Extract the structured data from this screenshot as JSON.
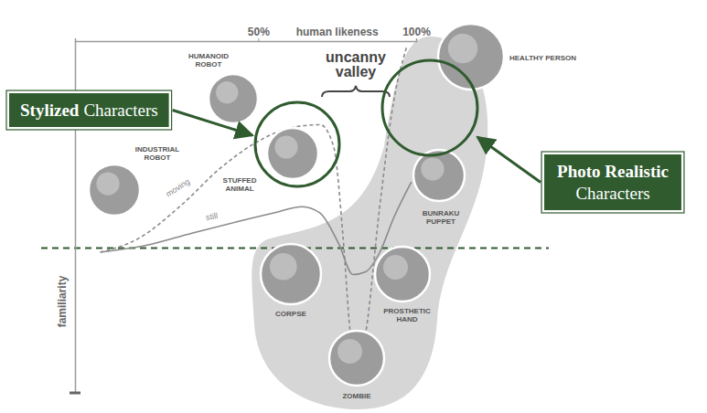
{
  "chart_data": {
    "type": "line",
    "x_label": "human likeness",
    "y_label": "familiarity",
    "xlim": [
      -8,
      100
    ],
    "xticks": [
      {
        "value": 50,
        "label": "50%"
      },
      {
        "value": 100,
        "label": "100%"
      }
    ],
    "ylim": [
      -70,
      100
    ],
    "yticks": [
      0
    ],
    "grid": true,
    "tick_labels": "x",
    "series": [
      {
        "name": "still",
        "color": "#8a8a8a",
        "line_style": "solid",
        "x": [
          0,
          14.5,
          29,
          43.5,
          55,
          64,
          69.5,
          75.5,
          80,
          84,
          88.5,
          93,
          98.5
        ],
        "values": [
          -2,
          1.3,
          7.2,
          12.8,
          17,
          20,
          17,
          2,
          -12.8,
          -11.5,
          -2,
          15,
          32
        ]
      },
      {
        "name": "moving",
        "color": "#8a8a8a",
        "line_style": "dashed",
        "x": [
          0,
          11.6,
          26,
          37.7,
          49.3,
          60.9,
          69.6,
          73.9,
          76.8,
          79.1,
          81.2,
          84.1,
          88.4,
          92.8,
          97.1
        ],
        "values": [
          -2,
          4.2,
          21.2,
          38.2,
          51,
          58.3,
          59.6,
          48.9,
          6.4,
          -40.4,
          -59.6,
          -40.4,
          19.1,
          70.1,
          97.7
        ]
      }
    ],
    "annotations": [
      {
        "text": "uncanny valley"
      },
      {
        "text": "INDUSTRIAL ROBOT"
      },
      {
        "text": "HUMANOID ROBOT"
      },
      {
        "text": "STUFFED ANIMAL"
      },
      {
        "text": "HEALTHY PERSON"
      },
      {
        "text": "BUNRAKU PUPPET"
      },
      {
        "text": "CORPSE"
      },
      {
        "text": "PROSTHETIC HAND"
      },
      {
        "text": "ZOMBIE"
      }
    ],
    "callouts": [
      {
        "emphasis": "Stylized",
        "text": "Characters"
      },
      {
        "emphasis": "Photo Realistic",
        "text": "Characters"
      }
    ]
  }
}
